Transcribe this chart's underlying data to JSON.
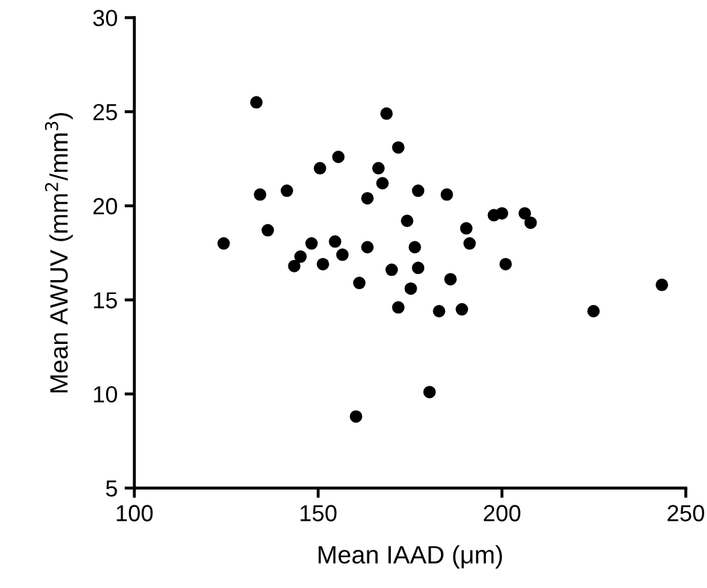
{
  "chart_data": {
    "type": "scatter",
    "xlabel": "Mean IAAD (μm)",
    "ylabel": "Mean AWUV (mm$^{2}$/mm$^{3}$)",
    "series": [
      {
        "color": "#000000",
        "x": [
          133.2,
          168.6,
          171.8,
          155.5,
          150.5,
          166.4,
          167.5,
          134.2,
          141.5,
          163.4,
          136.3,
          124.3,
          148.2,
          154.6,
          145.2,
          156.6,
          163.4,
          143.5,
          151.3,
          170.0,
          161.2,
          171.8,
          177.2,
          185.0,
          174.2,
          197.8,
          200.0,
          206.2,
          207.8,
          190.3,
          191.2,
          176.3,
          177.2,
          201.0,
          186.0,
          175.2,
          243.5,
          182.9,
          189.1,
          224.9,
          160.3,
          180.3
        ],
        "values": [
          25.5,
          24.9,
          23.1,
          22.6,
          22.0,
          22.0,
          21.2,
          20.6,
          20.8,
          20.4,
          18.7,
          18.0,
          18.0,
          18.1,
          17.3,
          17.4,
          17.8,
          16.8,
          16.9,
          16.6,
          15.9,
          14.6,
          20.8,
          20.6,
          19.2,
          19.5,
          19.6,
          19.6,
          19.1,
          18.8,
          18.0,
          17.8,
          16.7,
          16.9,
          16.1,
          15.6,
          15.8,
          14.4,
          14.5,
          14.4,
          8.8,
          10.1
        ]
      }
    ],
    "xlim": [
      100,
      250
    ],
    "xticks": [
      100,
      150,
      200,
      250
    ],
    "ylim": [
      5,
      30
    ],
    "yticks": [
      5,
      10,
      15,
      20,
      25,
      30
    ],
    "marker": "circle",
    "grid": false,
    "legend": false
  }
}
